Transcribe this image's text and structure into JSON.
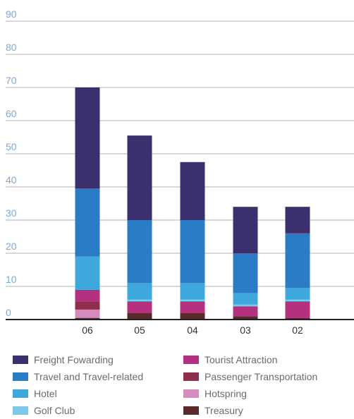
{
  "chart_data": {
    "type": "bar",
    "stacked": true,
    "categories": [
      "06",
      "05",
      "04",
      "03",
      "02"
    ],
    "ylim": [
      0,
      90
    ],
    "yticks": [
      0,
      10,
      20,
      30,
      40,
      50,
      60,
      70,
      80,
      90
    ],
    "grid": true,
    "legend_position": "bottom",
    "series": [
      {
        "name": "Treasury",
        "color": "#5a2a2a",
        "values": [
          0.5,
          2,
          2,
          1,
          0.5
        ]
      },
      {
        "name": "Hotspring",
        "color": "#d48cc0",
        "values": [
          2.5,
          0,
          0,
          0,
          0
        ]
      },
      {
        "name": "Passenger Transportation",
        "color": "#8e2f4c",
        "values": [
          2.5,
          0,
          0,
          0,
          0
        ]
      },
      {
        "name": "Tourist Attraction",
        "color": "#b5307e",
        "values": [
          3.5,
          3.5,
          3.5,
          3,
          5
        ]
      },
      {
        "name": "Golf Club",
        "color": "#7ec8e8",
        "values": [
          0,
          0.5,
          0.5,
          0.5,
          0.5
        ]
      },
      {
        "name": "Hotel",
        "color": "#3ea8dc",
        "values": [
          10,
          5,
          5,
          3.5,
          3.5
        ]
      },
      {
        "name": "Travel and Travel-related",
        "color": "#2a7cc4",
        "values": [
          20.5,
          19,
          19,
          12,
          16.5
        ]
      },
      {
        "name": "Freight Fowarding",
        "color": "#3b2f6e",
        "values": [
          30.5,
          25.5,
          17.5,
          14,
          8
        ]
      }
    ]
  },
  "legend": {
    "items": [
      {
        "label": "Freight Fowarding",
        "color": "#3b2f6e"
      },
      {
        "label": "Travel and Travel-related",
        "color": "#2a7cc4"
      },
      {
        "label": "Hotel",
        "color": "#3ea8dc"
      },
      {
        "label": "Golf Club",
        "color": "#7ec8e8"
      },
      {
        "label": "Tourist Attraction",
        "color": "#b5307e"
      },
      {
        "label": "Passenger Transportation",
        "color": "#8e2f4c"
      },
      {
        "label": "Hotspring",
        "color": "#d48cc0"
      },
      {
        "label": "Treasury",
        "color": "#5a2a2a"
      }
    ]
  },
  "colors": {
    "grid": "#b0b0b0",
    "axis": "#222222",
    "tick_label": "#7fa8d4",
    "category_label": "#333333"
  }
}
